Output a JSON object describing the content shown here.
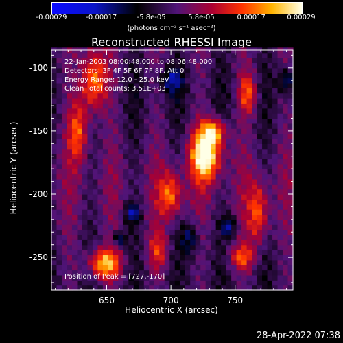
{
  "colorbar": {
    "ticks": [
      "-0.00029",
      "-0.00017",
      "-5.8e-05",
      "5.8e-05",
      "0.00017",
      "0.00029"
    ],
    "units": "(photons cm⁻² s⁻¹ asec⁻²)"
  },
  "chart_data": {
    "type": "heatmap",
    "title": "Reconstructed RHESSI Image",
    "xlabel": "Heliocentric X (arcsec)",
    "ylabel": "Heliocentric Y (arcsec)",
    "xlim": [
      607,
      795
    ],
    "ylim": [
      -276,
      -86
    ],
    "xticks": [
      "650",
      "700",
      "750"
    ],
    "yticks": [
      "-100",
      "-150",
      "-200",
      "-250"
    ],
    "colormap": "blue-black-red-yellow-white",
    "value_range": [
      -0.00029,
      0.00029
    ],
    "peak": [
      727,
      -170
    ],
    "annotations": {
      "time": "22-Jan-2003 08:00:48.000 to 08:06:48.000",
      "detectors": "Detectors: 3F 4F 5F 6F 7F 8F, Att 0",
      "energy": "Energy Range: 12.0 - 25.0 keV",
      "clean": "Clean    Total counts: 3.51E+03",
      "peak_label": "Position of Peak = [727,-170]"
    }
  },
  "footer": {
    "timestamp": "28-Apr-2022 07:38"
  }
}
